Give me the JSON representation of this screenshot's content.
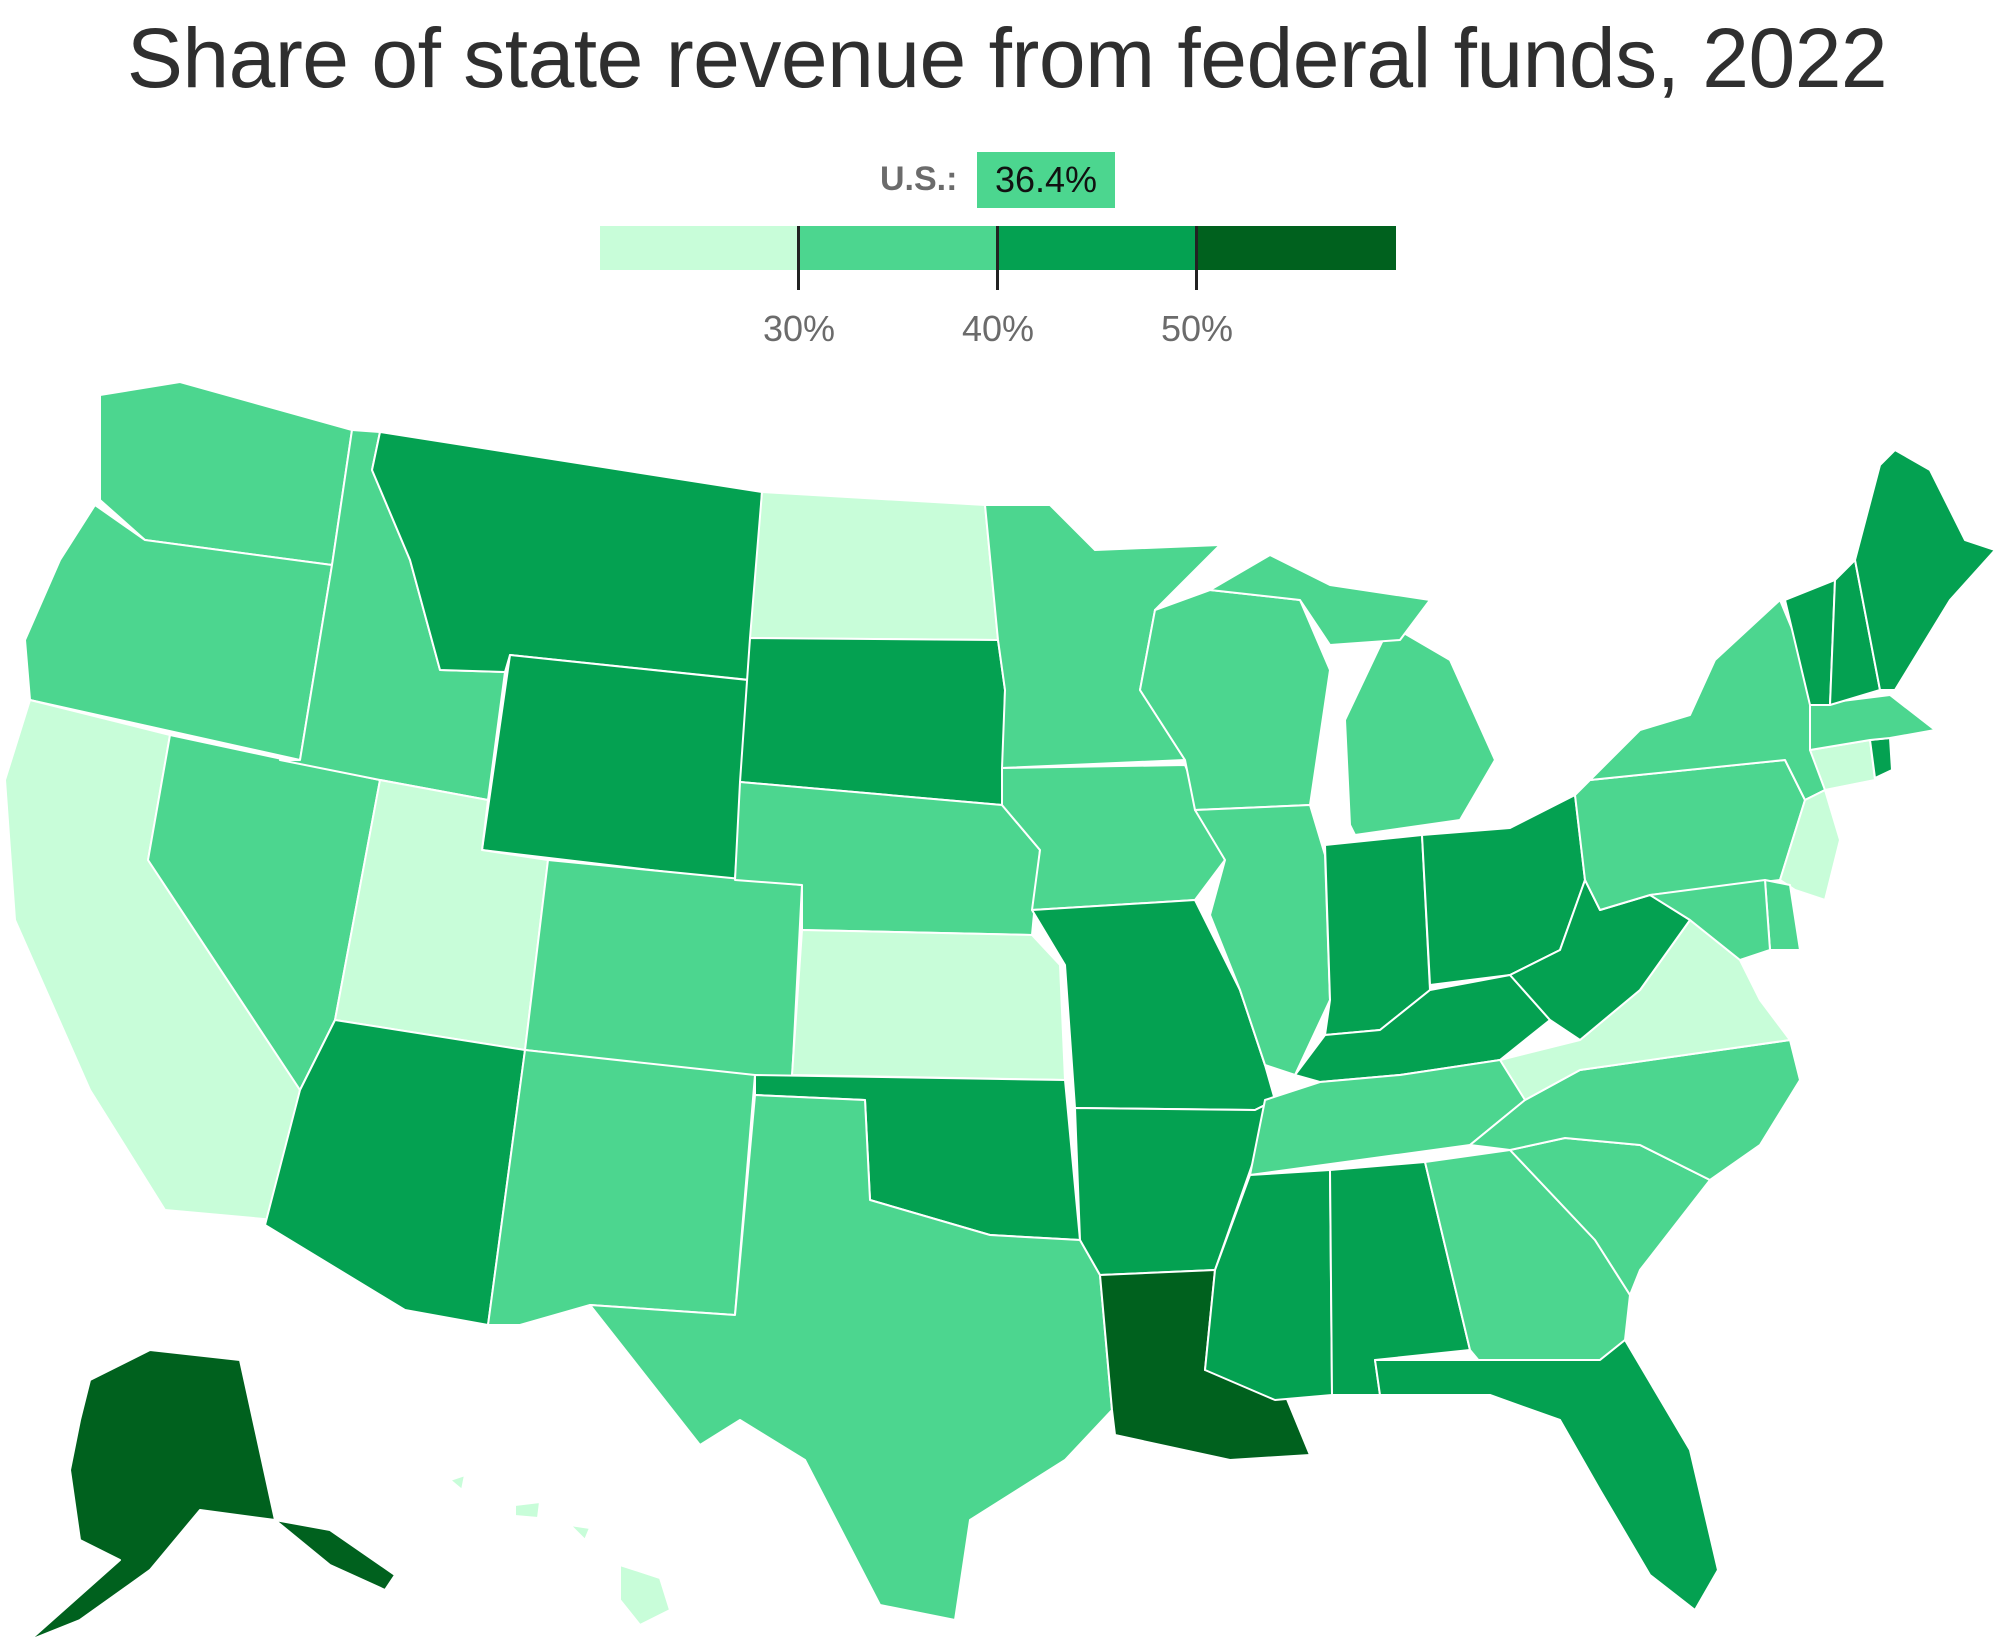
{
  "title": "Share of state revenue from federal funds, 2022",
  "us_average": {
    "label": "U.S.:",
    "value": "36.4%"
  },
  "legend": {
    "colors": [
      "#c8fdd9",
      "#4cd68f",
      "#04a151",
      "#00611e"
    ],
    "ticks": [
      "30%",
      "40%",
      "50%"
    ]
  },
  "colors": {
    "light": "#c8fdd9",
    "medium": "#4cd68f",
    "dark": "#04a151",
    "darkest": "#00611e"
  },
  "states": [
    {
      "id": "WA",
      "bin": "40%"
    },
    {
      "id": "OR",
      "bin": "40%"
    },
    {
      "id": "CA",
      "bin": "<30%"
    },
    {
      "id": "NV",
      "bin": "40%"
    },
    {
      "id": "ID",
      "bin": "40%"
    },
    {
      "id": "MT",
      "bin": "50%"
    },
    {
      "id": "WY",
      "bin": "50%"
    },
    {
      "id": "UT",
      "bin": "<30%"
    },
    {
      "id": "AZ",
      "bin": "50%"
    },
    {
      "id": "CO",
      "bin": "40%"
    },
    {
      "id": "NM",
      "bin": "40%"
    },
    {
      "id": "ND",
      "bin": "<30%"
    },
    {
      "id": "SD",
      "bin": "50%"
    },
    {
      "id": "NE",
      "bin": "40%"
    },
    {
      "id": "KS",
      "bin": "<30%"
    },
    {
      "id": "OK",
      "bin": "50%"
    },
    {
      "id": "TX",
      "bin": "40%"
    },
    {
      "id": "MN",
      "bin": "40%"
    },
    {
      "id": "IA",
      "bin": "40%"
    },
    {
      "id": "MO",
      "bin": "50%"
    },
    {
      "id": "AR",
      "bin": "50%"
    },
    {
      "id": "LA",
      "bin": ">50%"
    },
    {
      "id": "WI",
      "bin": "40%"
    },
    {
      "id": "IL",
      "bin": "40%"
    },
    {
      "id": "MI",
      "bin": "40%"
    },
    {
      "id": "IN",
      "bin": "50%"
    },
    {
      "id": "OH",
      "bin": "50%"
    },
    {
      "id": "KY",
      "bin": "50%"
    },
    {
      "id": "TN",
      "bin": "40%"
    },
    {
      "id": "MS",
      "bin": "50%"
    },
    {
      "id": "AL",
      "bin": "50%"
    },
    {
      "id": "GA",
      "bin": "40%"
    },
    {
      "id": "FL",
      "bin": "50%"
    },
    {
      "id": "SC",
      "bin": "40%"
    },
    {
      "id": "NC",
      "bin": "40%"
    },
    {
      "id": "VA",
      "bin": "<30%"
    },
    {
      "id": "WV",
      "bin": "50%"
    },
    {
      "id": "PA",
      "bin": "40%"
    },
    {
      "id": "NY",
      "bin": "40%"
    },
    {
      "id": "NJ",
      "bin": "<30%"
    },
    {
      "id": "DE",
      "bin": "40%"
    },
    {
      "id": "MD",
      "bin": "40%"
    },
    {
      "id": "CT",
      "bin": "<30%"
    },
    {
      "id": "RI",
      "bin": "50%"
    },
    {
      "id": "MA",
      "bin": "40%"
    },
    {
      "id": "VT",
      "bin": "50%"
    },
    {
      "id": "NH",
      "bin": "50%"
    },
    {
      "id": "ME",
      "bin": "50%"
    },
    {
      "id": "AK",
      "bin": ">50%"
    },
    {
      "id": "HI",
      "bin": "<30%"
    }
  ]
}
